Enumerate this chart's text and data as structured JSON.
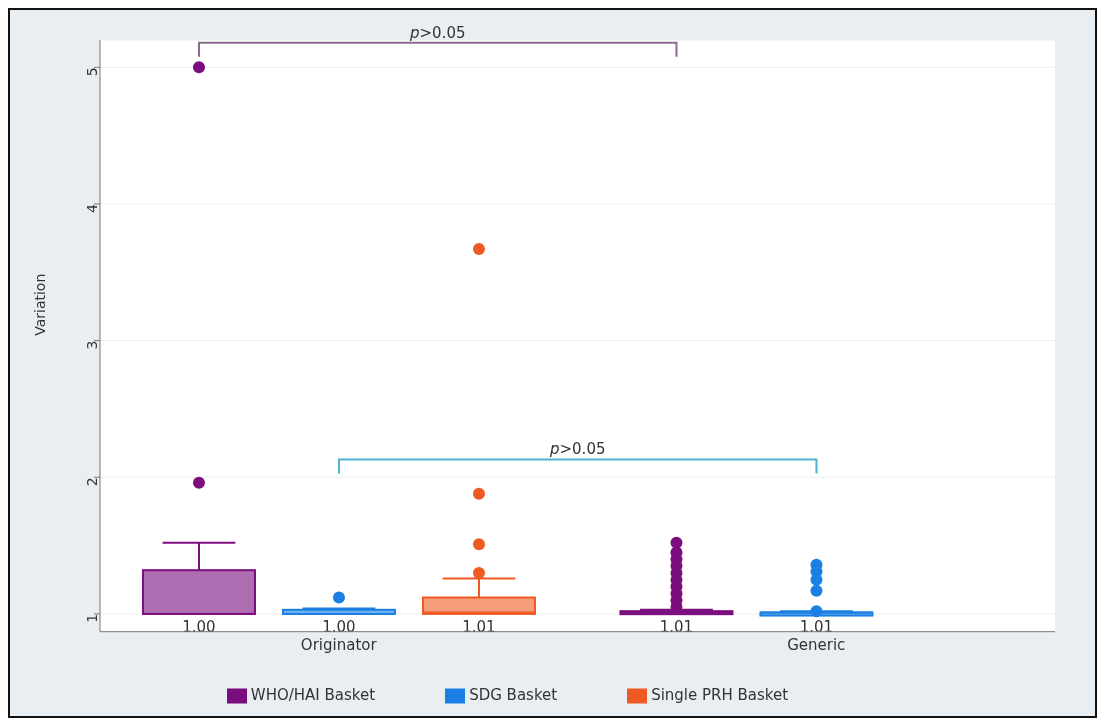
{
  "chart_data": {
    "type": "box",
    "ylabel": "Variation",
    "categories": [
      "Originator",
      "Generic"
    ],
    "series": [
      {
        "name": "WHO/HAI Basket",
        "color": "#7b0d7e",
        "value_labels": [
          "1.00",
          "1.01"
        ],
        "boxes": [
          {
            "low": 1.0,
            "q1": 1.0,
            "median": 1.0,
            "q3": 1.32,
            "high": 1.52,
            "outliers": [
              1.96,
              5.0
            ]
          },
          {
            "low": 1.0,
            "q1": 1.0,
            "median": 1.01,
            "q3": 1.02,
            "high": 1.03,
            "outliers": [
              1.05,
              1.1,
              1.15,
              1.2,
              1.25,
              1.3,
              1.35,
              1.4,
              1.45,
              1.52
            ]
          }
        ]
      },
      {
        "name": "SDG Basket",
        "color": "#1b7fe3",
        "value_labels": [
          "1.00",
          "1.01"
        ],
        "boxes": [
          {
            "low": 1.0,
            "q1": 1.0,
            "median": 1.0,
            "q3": 1.03,
            "high": 1.04,
            "outliers": [
              1.12
            ]
          },
          {
            "low": 1.0,
            "q1": 1.0,
            "median": 1.01,
            "q3": 1.01,
            "high": 1.02,
            "outliers": [
              1.02,
              1.17,
              1.25,
              1.31,
              1.36
            ]
          }
        ]
      },
      {
        "name": "Single PRH Basket",
        "color": "#ee5a22",
        "value_labels": [
          "1.01",
          null
        ],
        "boxes": [
          {
            "low": 1.0,
            "q1": 1.0,
            "median": 1.01,
            "q3": 1.12,
            "high": 1.26,
            "outliers": [
              1.3,
              1.51,
              1.88,
              3.67
            ]
          },
          null
        ]
      }
    ],
    "annotations": [
      "p>0.05",
      "p>0.05"
    ],
    "ylim": [
      0.87,
      5.2
    ],
    "yticks": [
      1,
      2,
      3,
      4,
      5
    ],
    "grid": "y",
    "legend": "bottom"
  }
}
